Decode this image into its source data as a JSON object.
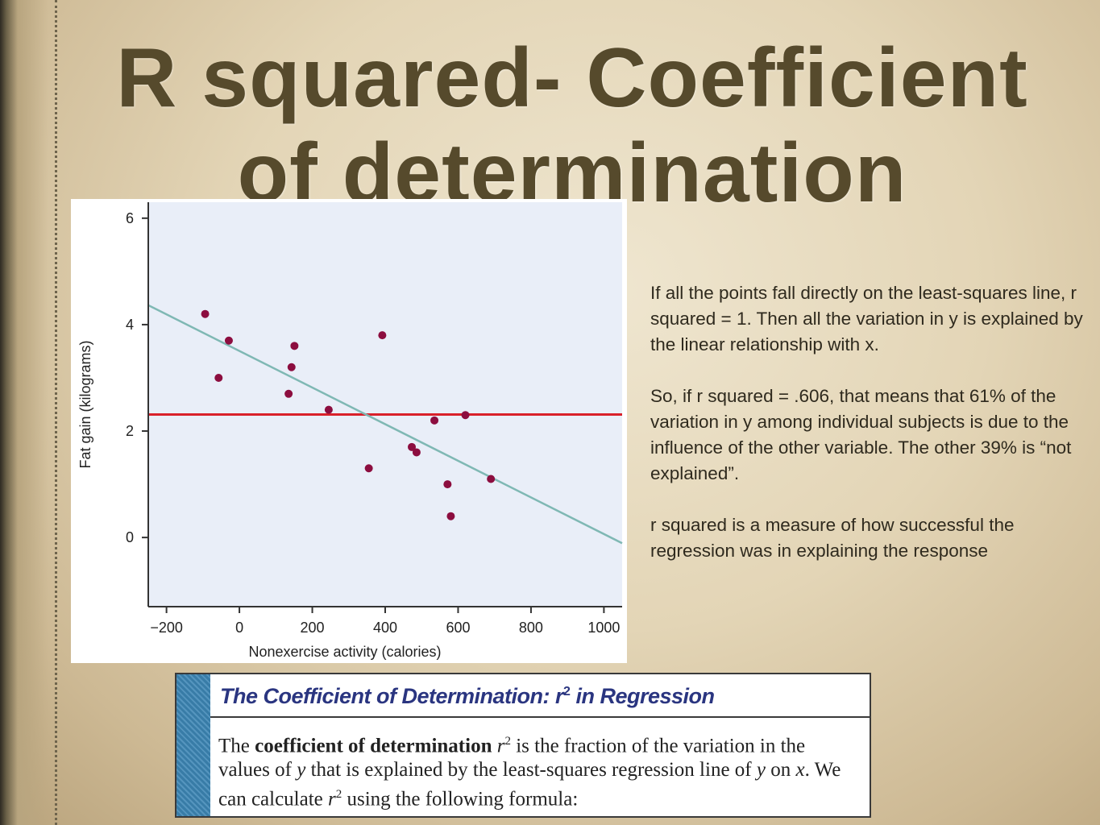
{
  "slide": {
    "title": "R squared- Coefficient of determination"
  },
  "explanation": {
    "p1": "If all the points fall directly on the least-squares line, r squared = 1.  Then all the variation in y is explained by the linear relationship with x.",
    "p2": "So, if r squared = .606, that means that 61% of the variation in y among individual subjects is due to the influence of the other variable.  The other 39% is “not explained”.",
    "p3": "r squared is a measure of how successful the regression was in explaining the response"
  },
  "definition_box": {
    "heading": "The Coefficient of Determination: r",
    "heading_sup": "2",
    "heading_tail": " in Regression",
    "text_1": "The ",
    "text_bold": "coefficient of determination",
    "text_r": " r",
    "text_sup1": "2",
    "text_2": " is the fraction of the variation in the values of ",
    "text_y1": "y",
    "text_3": " that is explained by the least-squares regression line of ",
    "text_y2": "y",
    "text_4": " on ",
    "text_x": "x",
    "text_5": ". We can calculate ",
    "text_r2": "r",
    "text_sup2": "2",
    "text_6": " using the following formula:"
  },
  "chart_data": {
    "type": "scatter",
    "xlabel": "Nonexercise activity (calories)",
    "ylabel": "Fat gain (kilograms)",
    "xlim": [
      -250,
      1050
    ],
    "ylim": [
      -1.3,
      6.3
    ],
    "xticks": [
      -200,
      0,
      200,
      400,
      600,
      800,
      1000
    ],
    "xtick_labels": [
      "−200",
      "0",
      "200",
      "400",
      "600",
      "800",
      "1000"
    ],
    "yticks": [
      0,
      2,
      4,
      6
    ],
    "ytick_labels": [
      "0",
      "2",
      "4",
      "6"
    ],
    "points": [
      {
        "x": -94,
        "y": 4.2
      },
      {
        "x": -57,
        "y": 3.0
      },
      {
        "x": -29,
        "y": 3.7
      },
      {
        "x": 135,
        "y": 2.7
      },
      {
        "x": 143,
        "y": 3.2
      },
      {
        "x": 151,
        "y": 3.6
      },
      {
        "x": 245,
        "y": 2.4
      },
      {
        "x": 355,
        "y": 1.3
      },
      {
        "x": 392,
        "y": 3.8
      },
      {
        "x": 473,
        "y": 1.7
      },
      {
        "x": 486,
        "y": 1.6
      },
      {
        "x": 535,
        "y": 2.2
      },
      {
        "x": 571,
        "y": 1.0
      },
      {
        "x": 580,
        "y": 0.4
      },
      {
        "x": 620,
        "y": 2.3
      },
      {
        "x": 690,
        "y": 1.1
      }
    ],
    "regression_line": {
      "intercept": 3.505,
      "slope": -0.00344,
      "color": "#7fb8b4"
    },
    "mean_line": {
      "y": 2.31,
      "color": "#d9202a"
    },
    "point_color": "#8c0d3f",
    "plot_background": "#e9eef8",
    "grid": false
  }
}
